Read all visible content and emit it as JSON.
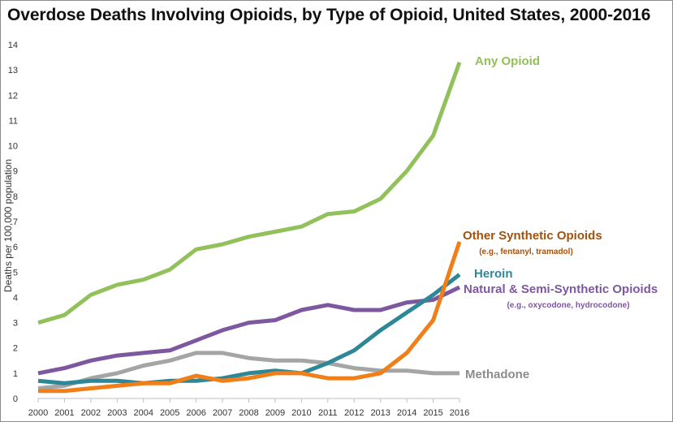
{
  "chart_data": {
    "type": "line",
    "title": "Overdose Deaths Involving Opioids, by Type of Opioid, United States, 2000-2016",
    "ylabel": "Deaths per 100,000 population",
    "xlabel": "",
    "x": [
      2000,
      2001,
      2002,
      2003,
      2004,
      2005,
      2006,
      2007,
      2008,
      2009,
      2010,
      2011,
      2012,
      2013,
      2014,
      2015,
      2016
    ],
    "ylim": [
      0,
      14
    ],
    "yticks": [
      0,
      1,
      2,
      3,
      4,
      5,
      6,
      7,
      8,
      9,
      10,
      11,
      12,
      13,
      14
    ],
    "grid": false,
    "legend": "none (series labeled directly at line ends)",
    "series": [
      {
        "name": "Any Opioid",
        "sublabel": "",
        "color": "#92c05a",
        "values": [
          3.0,
          3.3,
          4.1,
          4.5,
          4.7,
          5.1,
          5.9,
          6.1,
          6.4,
          6.6,
          6.8,
          7.3,
          7.4,
          7.9,
          9.0,
          10.4,
          13.3
        ]
      },
      {
        "name": "Other Synthetic Opioids",
        "sublabel": "(e.g., fentanyl, tramadol)",
        "color": "#f07f19",
        "label_color": "#a3510f",
        "values": [
          0.3,
          0.3,
          0.4,
          0.5,
          0.6,
          0.6,
          0.9,
          0.7,
          0.8,
          1.0,
          1.0,
          0.8,
          0.8,
          1.0,
          1.8,
          3.1,
          6.2
        ]
      },
      {
        "name": "Heroin",
        "sublabel": "",
        "color": "#2e8796",
        "values": [
          0.7,
          0.6,
          0.7,
          0.7,
          0.6,
          0.7,
          0.7,
          0.8,
          1.0,
          1.1,
          1.0,
          1.4,
          1.9,
          2.7,
          3.4,
          4.1,
          4.9
        ]
      },
      {
        "name": "Natural & Semi-Synthetic Opioids",
        "sublabel": "(e.g., oxycodone, hydrocodone)",
        "color": "#7d58a0",
        "values": [
          1.0,
          1.2,
          1.5,
          1.7,
          1.8,
          1.9,
          2.3,
          2.7,
          3.0,
          3.1,
          3.5,
          3.7,
          3.5,
          3.5,
          3.8,
          3.9,
          4.4
        ]
      },
      {
        "name": "Methadone",
        "sublabel": "",
        "color": "#a5a5a5",
        "label_color": "#8c8c8c",
        "values": [
          0.4,
          0.5,
          0.8,
          1.0,
          1.3,
          1.5,
          1.8,
          1.8,
          1.6,
          1.5,
          1.5,
          1.4,
          1.2,
          1.1,
          1.1,
          1.0,
          1.0
        ]
      }
    ]
  }
}
